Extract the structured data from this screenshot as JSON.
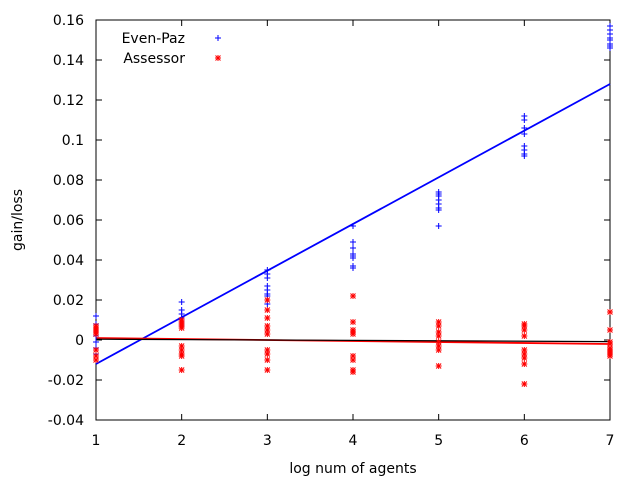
{
  "chart_data": {
    "type": "scatter",
    "title": "",
    "xlabel": "log num of agents",
    "ylabel": "gain/loss",
    "xlim": [
      1,
      7
    ],
    "ylim": [
      -0.04,
      0.16
    ],
    "xticks": [
      1,
      2,
      3,
      4,
      5,
      6,
      7
    ],
    "xtick_labels": [
      "1",
      "2",
      "3",
      "4",
      "5",
      "6",
      "7"
    ],
    "yticks": [
      -0.04,
      -0.02,
      0,
      0.02,
      0.04,
      0.06,
      0.08,
      0.1,
      0.12,
      0.14,
      0.16
    ],
    "ytick_labels": [
      "-0.04",
      "-0.02",
      "0",
      "0.02",
      "0.04",
      "0.06",
      "0.08",
      "0.1",
      "0.12",
      "0.14",
      "0.16"
    ],
    "grid": false,
    "legend_position": "top-left",
    "series": [
      {
        "name": "Even-Paz",
        "color": "#0000ff",
        "marker": "plus",
        "points": [
          [
            1,
            0.012
          ],
          [
            1,
            0.008
          ],
          [
            1,
            0.006
          ],
          [
            1,
            0.004
          ],
          [
            1,
            0.002
          ],
          [
            1,
            -0.001
          ],
          [
            1,
            -0.004
          ],
          [
            1,
            -0.007
          ],
          [
            2,
            0.019
          ],
          [
            2,
            0.015
          ],
          [
            2,
            0.013
          ],
          [
            2,
            0.011
          ],
          [
            2,
            0.01
          ],
          [
            2,
            0.009
          ],
          [
            2,
            0.008
          ],
          [
            2,
            0.007
          ],
          [
            3,
            0.035
          ],
          [
            3,
            0.033
          ],
          [
            3,
            0.031
          ],
          [
            3,
            0.027
          ],
          [
            3,
            0.025
          ],
          [
            3,
            0.023
          ],
          [
            3,
            0.022
          ],
          [
            3,
            0.018
          ],
          [
            4,
            0.057
          ],
          [
            4,
            0.049
          ],
          [
            4,
            0.046
          ],
          [
            4,
            0.043
          ],
          [
            4,
            0.042
          ],
          [
            4,
            0.041
          ],
          [
            4,
            0.037
          ],
          [
            4,
            0.036
          ],
          [
            5,
            0.074
          ],
          [
            5,
            0.073
          ],
          [
            5,
            0.072
          ],
          [
            5,
            0.07
          ],
          [
            5,
            0.068
          ],
          [
            5,
            0.066
          ],
          [
            5,
            0.065
          ],
          [
            5,
            0.057
          ],
          [
            6,
            0.112
          ],
          [
            6,
            0.11
          ],
          [
            6,
            0.106
          ],
          [
            6,
            0.103
          ],
          [
            6,
            0.097
          ],
          [
            6,
            0.095
          ],
          [
            6,
            0.093
          ],
          [
            6,
            0.092
          ],
          [
            7,
            0.157
          ],
          [
            7,
            0.155
          ],
          [
            7,
            0.153
          ],
          [
            7,
            0.151
          ],
          [
            7,
            0.15
          ],
          [
            7,
            0.148
          ],
          [
            7,
            0.147
          ],
          [
            7,
            0.146
          ]
        ],
        "trend_line": [
          [
            1,
            -0.012
          ],
          [
            7,
            0.128
          ]
        ]
      },
      {
        "name": "Assessor",
        "color": "#ff0000",
        "marker": "star",
        "points": [
          [
            1,
            0.007
          ],
          [
            1,
            0.006
          ],
          [
            1,
            0.005
          ],
          [
            1,
            0.004
          ],
          [
            1,
            0.003
          ],
          [
            1,
            -0.005
          ],
          [
            1,
            -0.008
          ],
          [
            1,
            -0.01
          ],
          [
            2,
            0.01
          ],
          [
            2,
            0.009
          ],
          [
            2,
            0.008
          ],
          [
            2,
            0.007
          ],
          [
            2,
            0.006
          ],
          [
            2,
            -0.003
          ],
          [
            2,
            -0.005
          ],
          [
            2,
            -0.007
          ],
          [
            2,
            -0.008
          ],
          [
            2,
            -0.015
          ],
          [
            3,
            0.02
          ],
          [
            3,
            0.015
          ],
          [
            3,
            0.011
          ],
          [
            3,
            0.007
          ],
          [
            3,
            0.005
          ],
          [
            3,
            0.003
          ],
          [
            3,
            -0.005
          ],
          [
            3,
            -0.007
          ],
          [
            3,
            -0.01
          ],
          [
            3,
            -0.015
          ],
          [
            4,
            0.022
          ],
          [
            4,
            0.009
          ],
          [
            4,
            0.005
          ],
          [
            4,
            0.004
          ],
          [
            4,
            0.003
          ],
          [
            4,
            -0.008
          ],
          [
            4,
            -0.01
          ],
          [
            4,
            -0.015
          ],
          [
            4,
            -0.016
          ],
          [
            5,
            0.009
          ],
          [
            5,
            0.007
          ],
          [
            5,
            0.004
          ],
          [
            5,
            0.002
          ],
          [
            5,
            -0.001
          ],
          [
            5,
            -0.003
          ],
          [
            5,
            -0.005
          ],
          [
            5,
            -0.013
          ],
          [
            6,
            0.008
          ],
          [
            6,
            0.007
          ],
          [
            6,
            0.005
          ],
          [
            6,
            0.002
          ],
          [
            6,
            -0.005
          ],
          [
            6,
            -0.007
          ],
          [
            6,
            -0.009
          ],
          [
            6,
            -0.012
          ],
          [
            6,
            -0.022
          ],
          [
            7,
            0.014
          ],
          [
            7,
            0.005
          ],
          [
            7,
            -0.001
          ],
          [
            7,
            -0.002
          ],
          [
            7,
            -0.004
          ],
          [
            7,
            -0.005
          ],
          [
            7,
            -0.006
          ],
          [
            7,
            -0.007
          ],
          [
            7,
            -0.008
          ]
        ],
        "trend_line": [
          [
            1,
            0.001
          ],
          [
            7,
            -0.002
          ]
        ]
      }
    ],
    "extra_line": {
      "color": "#000000",
      "points": [
        [
          1,
          0.0004
        ],
        [
          7,
          -0.0008
        ]
      ]
    }
  }
}
